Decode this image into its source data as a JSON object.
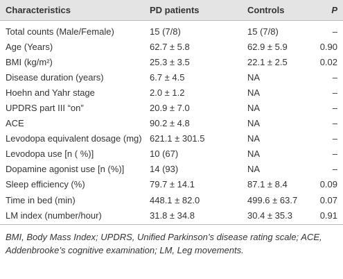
{
  "table": {
    "header": [
      "Characteristics",
      "PD patients",
      "Controls",
      "P"
    ],
    "rows": [
      [
        "Total counts (Male/Female)",
        "15 (7/8)",
        "15 (7/8)",
        "–"
      ],
      [
        "Age (Years)",
        "62.7 ± 5.8",
        "62.9 ± 5.9",
        "0.90"
      ],
      [
        "BMI (kg/m²)",
        "25.3 ± 3.5",
        "22.1 ± 2.5",
        "0.02"
      ],
      [
        "Disease duration (years)",
        "6.7 ± 4.5",
        "NA",
        "–"
      ],
      [
        "Hoehn and Yahr stage",
        "2.0 ± 1.2",
        "NA",
        "–"
      ],
      [
        "UPDRS part III “on”",
        "20.9 ± 7.0",
        "NA",
        "–"
      ],
      [
        "ACE",
        "90.2 ± 4.8",
        "NA",
        "–"
      ],
      [
        "Levodopa equivalent dosage (mg)",
        "621.1 ± 301.5",
        "NA",
        "–"
      ],
      [
        "Levodopa use [n ( %)]",
        "10 (67)",
        "NA",
        "–"
      ],
      [
        "Dopamine agonist use [n (%)]",
        "14 (93)",
        "NA",
        "–"
      ],
      [
        "Sleep efficiency (%)",
        "79.7 ± 14.1",
        "87.1 ± 8.4",
        "0.09"
      ],
      [
        "Time in bed (min)",
        "448.1 ± 82.0",
        "499.6 ± 63.7",
        "0.07"
      ],
      [
        "LM index (number/hour)",
        "31.8 ± 34.8",
        "30.4 ± 35.3",
        "0.91"
      ]
    ],
    "footnote": "BMI, Body Mass Index; UPDRS, Unified Parkinson’s disease rating scale; ACE, Addenbrooke’s cognitive examination; LM, Leg movements."
  }
}
